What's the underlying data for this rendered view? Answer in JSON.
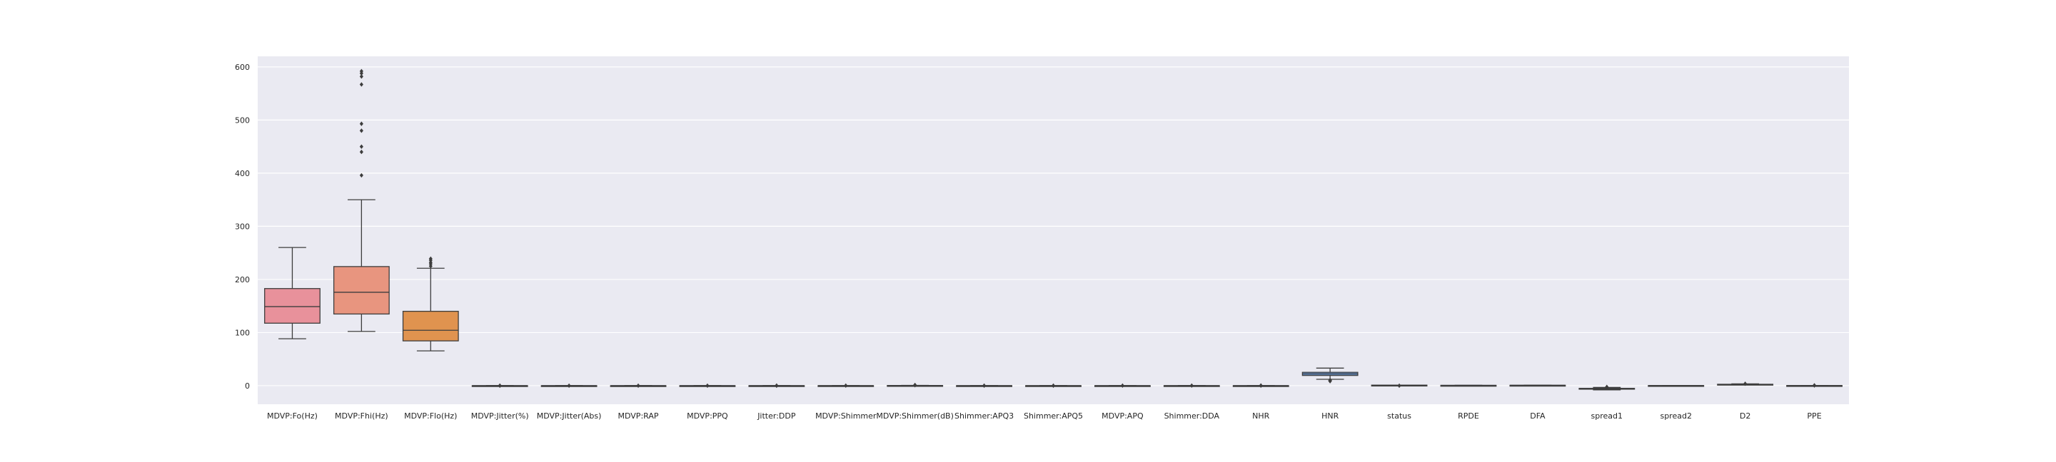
{
  "chart_data": {
    "type": "box",
    "title": "",
    "xlabel": "",
    "ylabel": "",
    "ylim": [
      -35,
      620
    ],
    "yticks": [
      0,
      100,
      200,
      300,
      400,
      500,
      600
    ],
    "grid": true,
    "legend": "none",
    "background_color": "#eaeaf2",
    "categories": [
      "MDVP:Fo(Hz)",
      "MDVP:Fhi(Hz)",
      "MDVP:Flo(Hz)",
      "MDVP:Jitter(%)",
      "MDVP:Jitter(Abs)",
      "MDVP:RAP",
      "MDVP:PPQ",
      "Jitter:DDP",
      "MDVP:Shimmer",
      "MDVP:Shimmer(dB)",
      "Shimmer:APQ3",
      "Shimmer:APQ5",
      "MDVP:APQ",
      "Shimmer:DDA",
      "NHR",
      "HNR",
      "status",
      "RPDE",
      "DFA",
      "spread1",
      "spread2",
      "D2",
      "PPE"
    ],
    "boxes": [
      {
        "min": 88.3,
        "q1": 117.6,
        "median": 148.8,
        "q3": 182.8,
        "max": 260.1,
        "outliers": [],
        "color": "#e8919b"
      },
      {
        "min": 102.1,
        "q1": 134.9,
        "median": 175.8,
        "q3": 224.2,
        "max": 350.0,
        "outliers": [
          396,
          440,
          450,
          480,
          493,
          567,
          582,
          588,
          592
        ],
        "color": "#e8957f"
      },
      {
        "min": 65.5,
        "q1": 84.3,
        "median": 104.3,
        "q3": 140.0,
        "max": 221.0,
        "outliers": [
          225,
          229,
          232,
          236,
          239
        ],
        "color": "#e0934f"
      },
      {
        "min": 0,
        "q1": 0,
        "median": 0,
        "q3": 0.01,
        "max": 0.01,
        "outliers": [
          0.02,
          0.03
        ],
        "color": "#c99e46"
      },
      {
        "min": 0,
        "q1": 0,
        "median": 0,
        "q3": 0,
        "max": 0,
        "outliers": [
          0.0002
        ],
        "color": "#b8a548"
      },
      {
        "min": 0,
        "q1": 0,
        "median": 0,
        "q3": 0,
        "max": 0.01,
        "outliers": [
          0.02
        ],
        "color": "#a5ab48"
      },
      {
        "min": 0,
        "q1": 0,
        "median": 0,
        "q3": 0,
        "max": 0.01,
        "outliers": [
          0.02
        ],
        "color": "#8fb14b"
      },
      {
        "min": 0,
        "q1": 0.01,
        "median": 0.01,
        "q3": 0.01,
        "max": 0.02,
        "outliers": [
          0.04,
          0.06
        ],
        "color": "#6fb551"
      },
      {
        "min": 0.01,
        "q1": 0.02,
        "median": 0.02,
        "q3": 0.04,
        "max": 0.07,
        "outliers": [
          0.1
        ],
        "color": "#50b565"
      },
      {
        "min": 0.09,
        "q1": 0.18,
        "median": 0.22,
        "q3": 0.35,
        "max": 0.6,
        "outliers": [
          0.9,
          1.3
        ],
        "color": "#4db38a"
      },
      {
        "min": 0,
        "q1": 0.01,
        "median": 0.01,
        "q3": 0.02,
        "max": 0.04,
        "outliers": [
          0.05
        ],
        "color": "#4cb19f"
      },
      {
        "min": 0,
        "q1": 0.01,
        "median": 0.01,
        "q3": 0.02,
        "max": 0.04,
        "outliers": [
          0.06
        ],
        "color": "#4daeb0"
      },
      {
        "min": 0.01,
        "q1": 0.02,
        "median": 0.02,
        "q3": 0.03,
        "max": 0.05,
        "outliers": [
          0.1
        ],
        "color": "#4eabbe"
      },
      {
        "min": 0.01,
        "q1": 0.02,
        "median": 0.03,
        "q3": 0.06,
        "max": 0.12,
        "outliers": [
          0.17
        ],
        "color": "#52a8cc"
      },
      {
        "min": 0,
        "q1": 0.01,
        "median": 0.01,
        "q3": 0.03,
        "max": 0.06,
        "outliers": [
          0.1,
          0.3
        ],
        "color": "#5aa2d8"
      },
      {
        "min": 12.0,
        "q1": 19.2,
        "median": 22.1,
        "q3": 25.1,
        "max": 33.0,
        "outliers": [
          8.4,
          9.5,
          10.5
        ],
        "color": "#6a9de0"
      },
      {
        "min": 0,
        "q1": 1,
        "median": 1,
        "q3": 1,
        "max": 1,
        "outliers": [
          0
        ],
        "color": "#8d98e3"
      },
      {
        "min": 0.26,
        "q1": 0.42,
        "median": 0.5,
        "q3": 0.59,
        "max": 0.69,
        "outliers": [],
        "color": "#aa91e2"
      },
      {
        "min": 0.57,
        "q1": 0.67,
        "median": 0.72,
        "q3": 0.76,
        "max": 0.83,
        "outliers": [],
        "color": "#c188dd"
      },
      {
        "min": -7.96,
        "q1": -6.45,
        "median": -5.72,
        "q3": -5.05,
        "max": -3.3,
        "outliers": [
          -2.9,
          -2.4
        ],
        "color": "#d680d4"
      },
      {
        "min": 0.01,
        "q1": 0.17,
        "median": 0.22,
        "q3": 0.28,
        "max": 0.45,
        "outliers": [],
        "color": "#e27cc2"
      },
      {
        "min": 1.42,
        "q1": 2.1,
        "median": 2.36,
        "q3": 2.64,
        "max": 3.4,
        "outliers": [
          3.67
        ],
        "color": "#e67fb0"
      },
      {
        "min": 0.04,
        "q1": 0.14,
        "median": 0.19,
        "q3": 0.25,
        "max": 0.43,
        "outliers": [
          0.45,
          0.53
        ],
        "color": "#e985a3"
      }
    ]
  }
}
